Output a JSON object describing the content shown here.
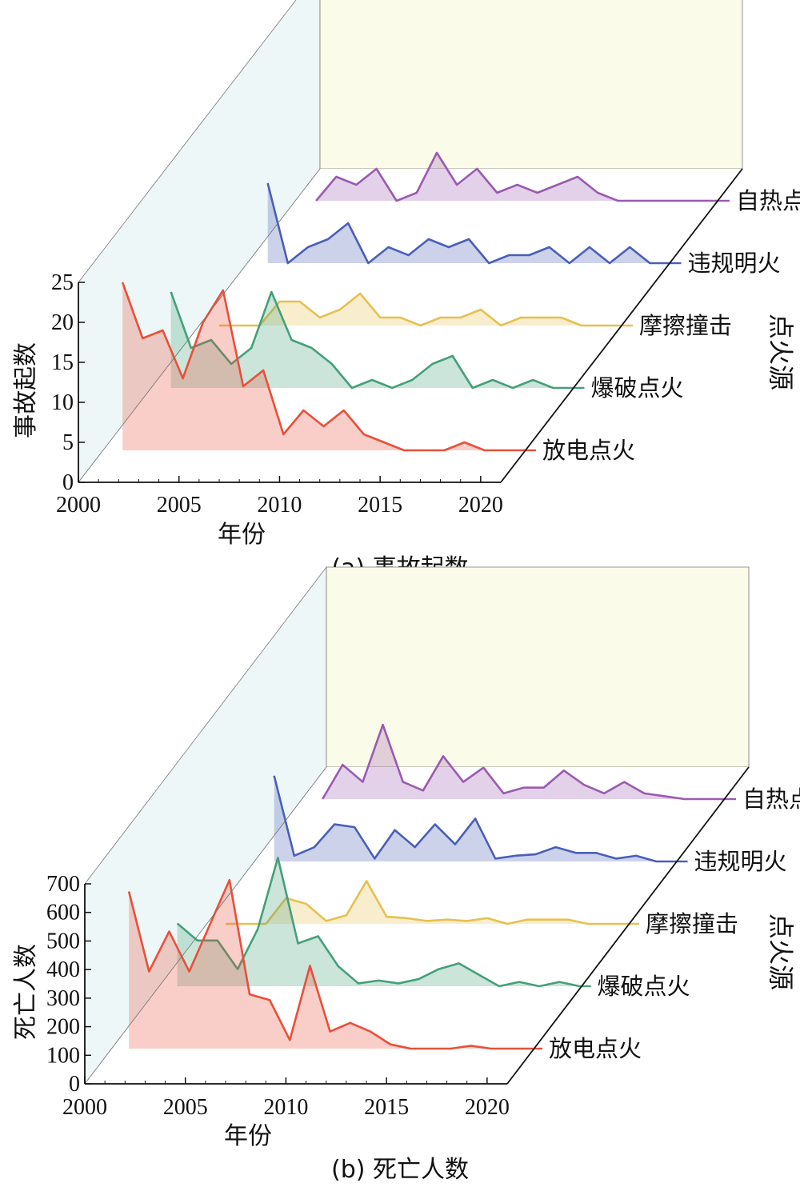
{
  "colors": {
    "放电点火": "#e8503a",
    "爆破点火": "#45a07a",
    "摩擦撞击": "#e6c150",
    "违规明火": "#4a5fb8",
    "自热点火": "#9a5bb0",
    "back_wall": "#fbfbe9",
    "side_wall": "#eef7f7"
  },
  "chart_data": [
    {
      "type": "area",
      "caption": "(a) 事故起数",
      "xlabel": "年份",
      "ylabel": "事故起数",
      "zlabel": "点火源",
      "x_ticks": [
        "2000",
        "2005",
        "2010",
        "2015",
        "2020"
      ],
      "y_ticks": [
        "0",
        "5",
        "10",
        "15",
        "20",
        "25"
      ],
      "ylim": [
        0,
        25
      ],
      "xlim": [
        2000,
        2021
      ],
      "x": [
        2001,
        2002,
        2003,
        2004,
        2005,
        2006,
        2007,
        2008,
        2009,
        2010,
        2011,
        2012,
        2013,
        2014,
        2015,
        2016,
        2017,
        2018,
        2019,
        2020,
        2021
      ],
      "series": [
        {
          "name": "放电点火",
          "values": [
            21,
            14,
            15,
            9,
            16,
            20,
            8,
            10,
            2,
            5,
            3,
            5,
            2,
            1,
            0,
            0,
            0,
            1,
            0,
            0,
            0
          ]
        },
        {
          "name": "爆破点火",
          "values": [
            12,
            5,
            6,
            3,
            5,
            12,
            6,
            5,
            3,
            0,
            1,
            0,
            1,
            3,
            4,
            0,
            1,
            0,
            1,
            0,
            0
          ]
        },
        {
          "name": "摩擦撞击",
          "values": [
            0,
            0,
            0,
            3,
            3,
            1,
            2,
            4,
            1,
            1,
            0,
            1,
            1,
            2,
            0,
            1,
            1,
            1,
            0,
            0,
            0
          ]
        },
        {
          "name": "违规明火",
          "values": [
            10,
            0,
            2,
            3,
            5,
            0,
            2,
            1,
            3,
            2,
            3,
            0,
            1,
            1,
            2,
            0,
            2,
            0,
            2,
            0,
            0
          ]
        },
        {
          "name": "自热点火",
          "values": [
            0,
            3,
            2,
            4,
            0,
            1,
            6,
            2,
            4,
            1,
            2,
            1,
            2,
            3,
            1,
            0,
            0,
            0,
            0,
            0,
            0
          ]
        }
      ]
    },
    {
      "type": "area",
      "caption": "(b) 死亡人数",
      "xlabel": "年份",
      "ylabel": "死亡人数",
      "zlabel": "点火源",
      "x_ticks": [
        "2000",
        "2005",
        "2010",
        "2015",
        "2020"
      ],
      "y_ticks": [
        "0",
        "100",
        "200",
        "300",
        "400",
        "500",
        "600",
        "700"
      ],
      "ylim": [
        0,
        700
      ],
      "xlim": [
        2000,
        2021
      ],
      "x": [
        2001,
        2002,
        2003,
        2004,
        2005,
        2006,
        2007,
        2008,
        2009,
        2010,
        2011,
        2012,
        2013,
        2014,
        2015,
        2016,
        2017,
        2018,
        2019,
        2020,
        2021
      ],
      "series": [
        {
          "name": "放电点火",
          "values": [
            550,
            270,
            410,
            270,
            430,
            590,
            190,
            170,
            30,
            290,
            60,
            90,
            60,
            15,
            0,
            0,
            0,
            10,
            0,
            0,
            0
          ]
        },
        {
          "name": "爆破点火",
          "values": [
            220,
            160,
            160,
            60,
            200,
            450,
            150,
            175,
            70,
            10,
            20,
            10,
            25,
            60,
            80,
            40,
            0,
            15,
            0,
            15,
            0
          ]
        },
        {
          "name": "摩擦撞击",
          "values": [
            0,
            0,
            0,
            90,
            70,
            10,
            30,
            150,
            25,
            20,
            10,
            15,
            10,
            20,
            0,
            15,
            15,
            15,
            0,
            0,
            0
          ]
        },
        {
          "name": "违规明火",
          "values": [
            300,
            20,
            50,
            130,
            120,
            10,
            110,
            50,
            130,
            60,
            150,
            10,
            20,
            25,
            50,
            30,
            30,
            10,
            20,
            0,
            0
          ]
        },
        {
          "name": "自热点火",
          "values": [
            0,
            120,
            60,
            260,
            60,
            30,
            150,
            60,
            110,
            20,
            40,
            40,
            100,
            50,
            20,
            60,
            20,
            10,
            0,
            0,
            0
          ]
        }
      ]
    }
  ]
}
